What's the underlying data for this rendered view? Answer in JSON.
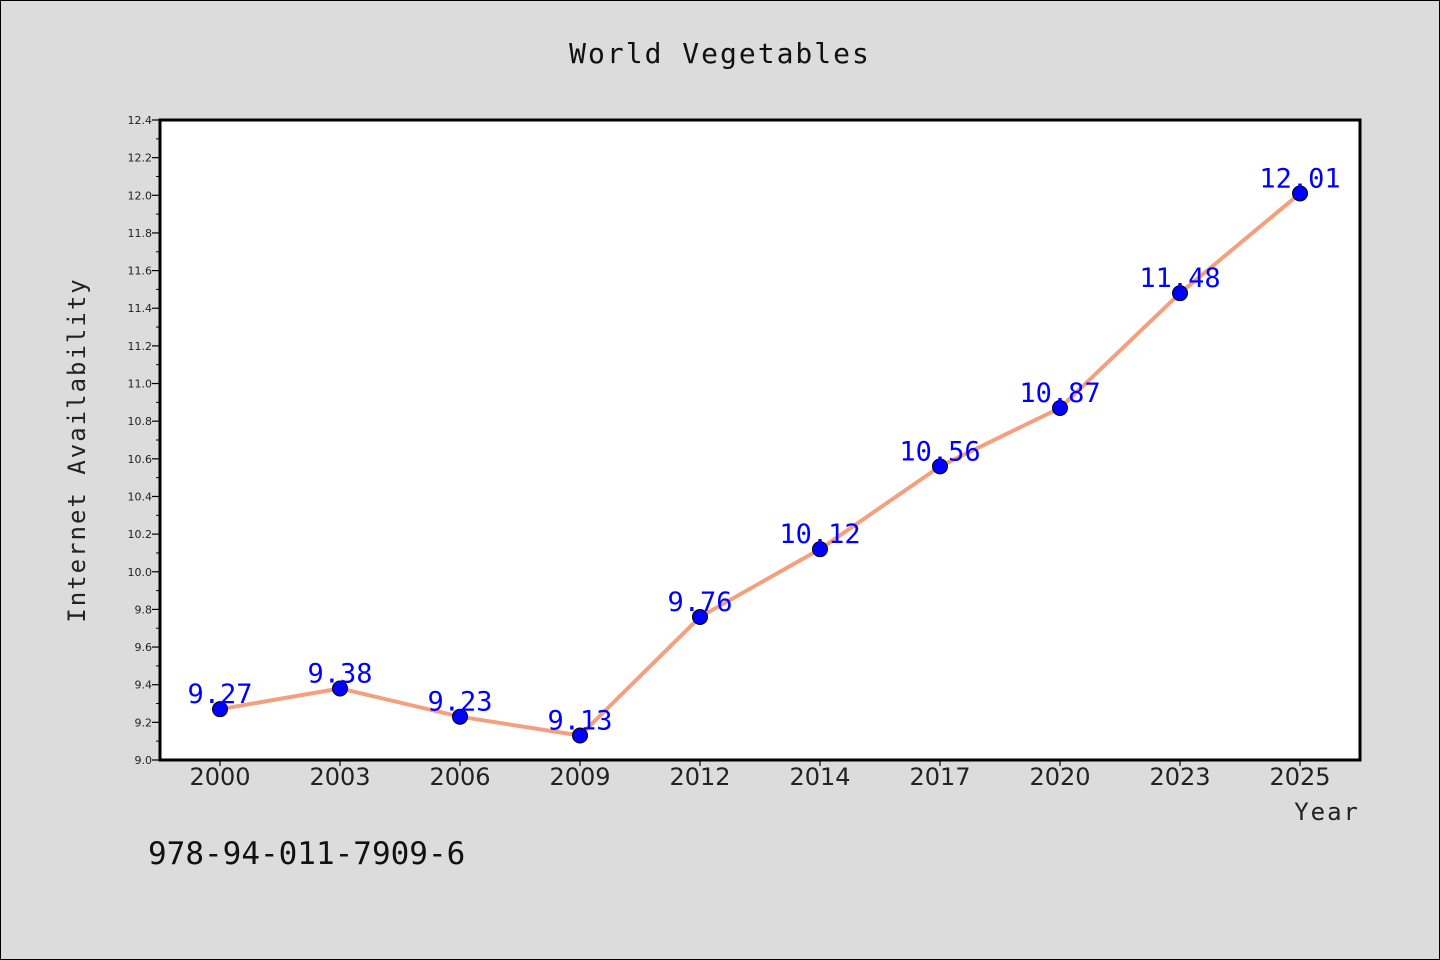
{
  "chart_data": {
    "type": "line",
    "title": "World Vegetables",
    "xlabel": "Year",
    "ylabel": "Internet Availability",
    "categories": [
      "2000",
      "2003",
      "2006",
      "2009",
      "2012",
      "2014",
      "2017",
      "2020",
      "2023",
      "2025"
    ],
    "series": [
      {
        "values": [
          9.27,
          9.38,
          9.23,
          9.13,
          9.76,
          10.12,
          10.56,
          10.87,
          11.48,
          12.01
        ],
        "line_color": "#f4a07f",
        "marker_color": "#0000ff"
      }
    ],
    "data_labels": [
      "9.27",
      "9.38",
      "9.23",
      "9.13",
      "9.76",
      "10.12",
      "10.56",
      "10.87",
      "11.48",
      "12.01"
    ],
    "ylim": [
      9.0,
      12.4
    ],
    "yticks": [
      "9.0",
      "9.2",
      "9.4",
      "9.6",
      "9.8",
      "10.0",
      "10.2",
      "10.4",
      "10.6",
      "10.8",
      "11.0",
      "11.2",
      "11.4",
      "11.6",
      "11.8",
      "12.0",
      "12.2",
      "12.4"
    ],
    "grid": false,
    "legend": "none",
    "plot_background": "#ffffff",
    "page_background": "#dcdcdc"
  },
  "footer": {
    "code_text": "978-94-011-7909-6"
  }
}
